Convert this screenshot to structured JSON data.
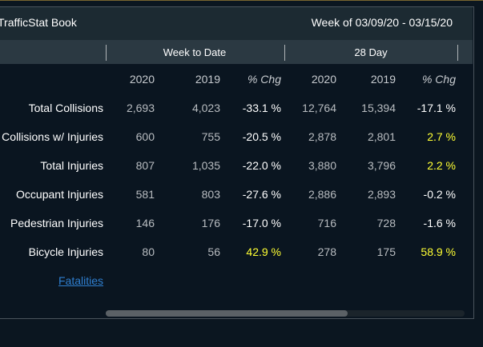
{
  "header": {
    "title": "TrafficStat Book",
    "week": "Week of 03/09/20 - 03/15/20"
  },
  "table": {
    "groups": [
      "Week to Date",
      "28 Day"
    ],
    "columns": [
      "2020",
      "2019",
      "% Chg",
      "2020",
      "2019",
      "% Chg"
    ],
    "highlight_color": "#ffff33",
    "rows": [
      {
        "label": "Total Collisions",
        "cells": [
          "2,693",
          "4,023",
          "-33.1 %",
          "12,764",
          "15,394",
          "-17.1 %"
        ]
      },
      {
        "label": "Collisions w/ Injuries",
        "cells": [
          "600",
          "755",
          "-20.5 %",
          "2,878",
          "2,801",
          "2.7 %"
        ]
      },
      {
        "label": "Total Injuries",
        "cells": [
          "807",
          "1,035",
          "-22.0 %",
          "3,880",
          "3,796",
          "2.2 %"
        ]
      },
      {
        "label": "Occupant Injuries",
        "cells": [
          "581",
          "803",
          "-27.6 %",
          "2,886",
          "2,893",
          "-0.2 %"
        ]
      },
      {
        "label": "Pedestrian Injuries",
        "cells": [
          "146",
          "176",
          "-17.0 %",
          "716",
          "728",
          "-1.6 %"
        ]
      },
      {
        "label": "Bicycle Injuries",
        "cells": [
          "80",
          "56",
          "42.9 %",
          "278",
          "175",
          "58.9 %"
        ]
      }
    ]
  },
  "link": "Fatalities"
}
